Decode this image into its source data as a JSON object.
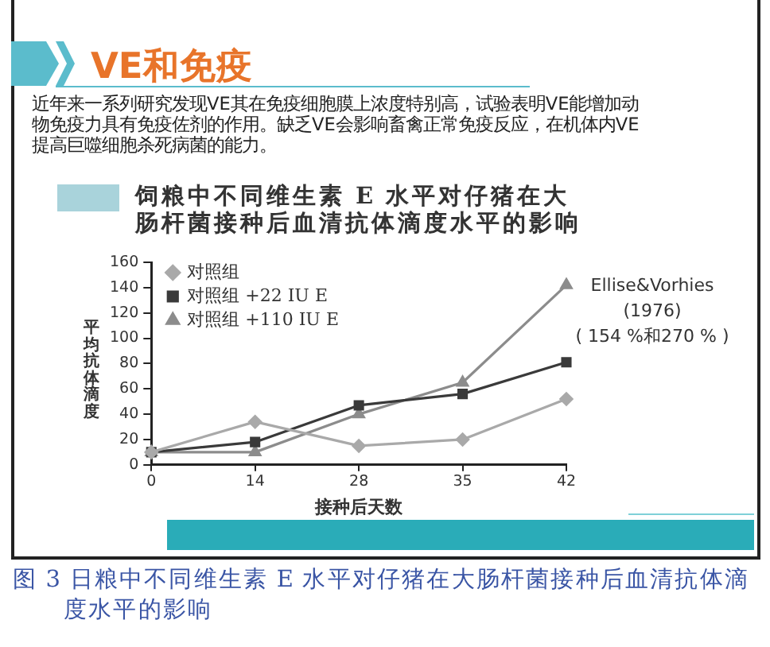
{
  "chart_data": {
    "type": "line",
    "title": "VE和免疫",
    "subtitle": "近年来一系列研究发现VE其在免疫细胞膜上浓度特别高，试验表明VE能增加动物免疫力具有免疫佐剂的作用。缺乏VE会影响畜禽正常免疫反应，在机体内VE提高巨噬细胞杀死病菌的能力。",
    "xlabel": "接种后天数",
    "ylabel": "平均抗体滴度",
    "categories": [
      "0",
      "14",
      "28",
      "35",
      "42"
    ],
    "series": [
      {
        "name": "对照组",
        "color": "#a9a9a9",
        "marker": "diamond",
        "values": [
          10,
          34,
          15,
          20,
          52
        ]
      },
      {
        "name": "对照组 +22 IU E",
        "color": "#3a3a3a",
        "marker": "square",
        "values": [
          10,
          18,
          47,
          56,
          81
        ]
      },
      {
        "name": "对照组 +110 IU E",
        "color": "#8c8c8c",
        "marker": "triangle",
        "values": [
          10,
          10,
          40,
          65,
          142
        ]
      }
    ],
    "ylim": [
      0,
      160
    ],
    "yticks": [
      0,
      20,
      40,
      60,
      80,
      100,
      120,
      140,
      160
    ],
    "legend": "top left",
    "annotations": [
      "饲粮中不同维生素 E 水平对仔猪在大肠杆菌接种后血清抗体滴度水平的影响",
      "Ellise&Vorhies\n(1976)\n( 154 %和270 % )",
      "图 3 日粮中不同维生素 E 水平对仔猪在大肠杆菌接种后血清抗体滴度水平的影响"
    ]
  }
}
